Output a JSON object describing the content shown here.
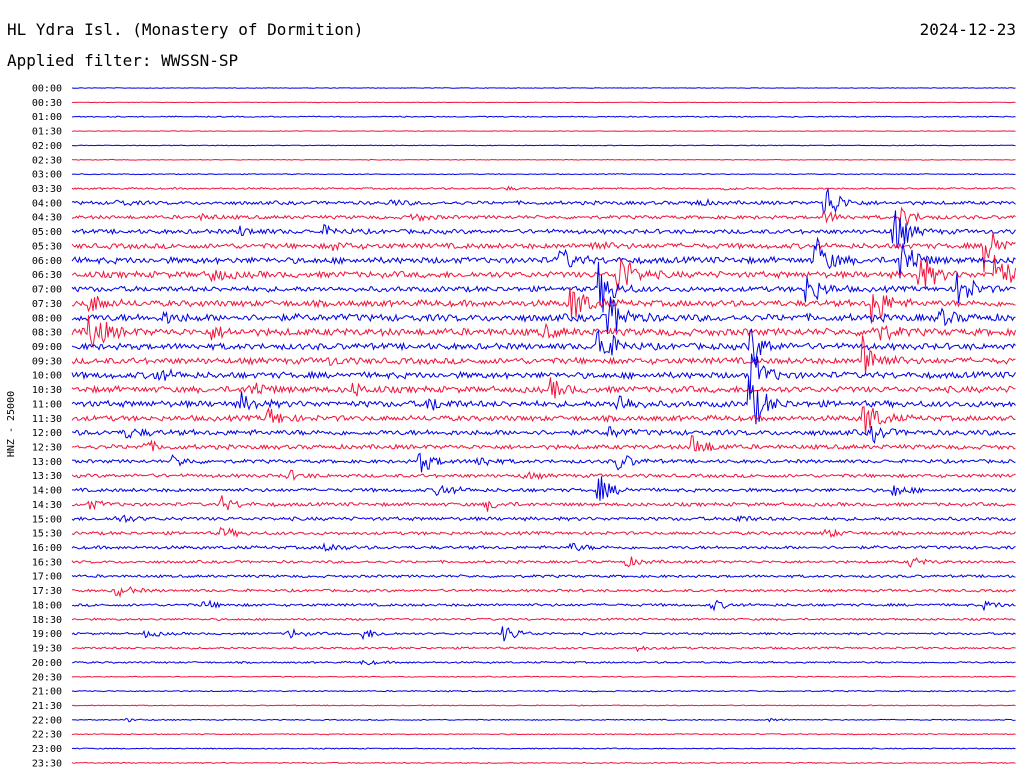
{
  "header": {
    "station": "HL Ydra Isl. (Monastery of Dormition)",
    "date": "2024-12-23",
    "filter": "Applied filter: WWSSN-SP"
  },
  "chart_data": {
    "type": "line",
    "title": "HL Ydra Isl. (Monastery of Dormition)",
    "ylabel": "HNZ - 25000",
    "colors": [
      "#0000e6",
      "#f0143c"
    ],
    "rows": [
      "00:00",
      "00:30",
      "01:00",
      "01:30",
      "02:00",
      "02:30",
      "03:00",
      "03:30",
      "04:00",
      "04:30",
      "05:00",
      "05:30",
      "06:00",
      "06:30",
      "07:00",
      "07:30",
      "08:00",
      "08:30",
      "09:00",
      "09:30",
      "10:00",
      "10:30",
      "11:00",
      "11:30",
      "12:00",
      "12:30",
      "13:00",
      "13:30",
      "14:00",
      "14:30",
      "15:00",
      "15:30",
      "16:00",
      "16:30",
      "17:00",
      "17:30",
      "18:00",
      "18:30",
      "19:00",
      "19:30",
      "20:00",
      "20:30",
      "21:00",
      "21:30",
      "22:00",
      "22:30",
      "23:00",
      "23:30"
    ],
    "noise": [
      0.3,
      0.3,
      0.6,
      0.3,
      0.4,
      0.4,
      0.5,
      1,
      2,
      2,
      2.5,
      3,
      3.5,
      3.5,
      3,
      3.5,
      4,
      4,
      3.5,
      3.5,
      3.5,
      3.5,
      3.5,
      3,
      3,
      2.5,
      2,
      2,
      2,
      2,
      2,
      1.8,
      1.8,
      1.5,
      1.5,
      1.5,
      1.5,
      1.2,
      1.2,
      1.2,
      1,
      0.5,
      0.7,
      0.5,
      0.6,
      0.6,
      0.6,
      0.6
    ],
    "events": [
      {
        "row": 7,
        "t": 0.46,
        "a": 2
      },
      {
        "row": 7,
        "t": 0.69,
        "a": 2
      },
      {
        "row": 8,
        "t": 0.05,
        "a": 3
      },
      {
        "row": 8,
        "t": 0.34,
        "a": 3
      },
      {
        "row": 8,
        "t": 0.66,
        "a": 4
      },
      {
        "row": 8,
        "t": 0.8,
        "a": 22
      },
      {
        "row": 9,
        "t": 0.14,
        "a": 3
      },
      {
        "row": 9,
        "t": 0.36,
        "a": 5
      },
      {
        "row": 9,
        "t": 0.8,
        "a": 6
      },
      {
        "row": 9,
        "t": 0.88,
        "a": 12
      },
      {
        "row": 10,
        "t": 0.18,
        "a": 6
      },
      {
        "row": 10,
        "t": 0.27,
        "a": 5
      },
      {
        "row": 10,
        "t": 0.87,
        "a": 32
      },
      {
        "row": 11,
        "t": 0.28,
        "a": 4
      },
      {
        "row": 11,
        "t": 0.55,
        "a": 6
      },
      {
        "row": 11,
        "t": 0.97,
        "a": 30
      },
      {
        "row": 12,
        "t": 0.52,
        "a": 12
      },
      {
        "row": 12,
        "t": 0.79,
        "a": 24
      },
      {
        "row": 12,
        "t": 0.88,
        "a": 26
      },
      {
        "row": 13,
        "t": 0.15,
        "a": 8
      },
      {
        "row": 13,
        "t": 0.58,
        "a": 30
      },
      {
        "row": 13,
        "t": 0.9,
        "a": 22
      },
      {
        "row": 13,
        "t": 0.98,
        "a": 30
      },
      {
        "row": 14,
        "t": 0.56,
        "a": 28
      },
      {
        "row": 14,
        "t": 0.78,
        "a": 20
      },
      {
        "row": 14,
        "t": 0.94,
        "a": 22
      },
      {
        "row": 15,
        "t": 0.02,
        "a": 12
      },
      {
        "row": 15,
        "t": 0.53,
        "a": 28
      },
      {
        "row": 15,
        "t": 0.85,
        "a": 26
      },
      {
        "row": 16,
        "t": 0.1,
        "a": 6
      },
      {
        "row": 16,
        "t": 0.57,
        "a": 30
      },
      {
        "row": 16,
        "t": 0.92,
        "a": 10
      },
      {
        "row": 17,
        "t": 0.02,
        "a": 28
      },
      {
        "row": 17,
        "t": 0.15,
        "a": 6
      },
      {
        "row": 17,
        "t": 0.5,
        "a": 6
      },
      {
        "row": 17,
        "t": 0.85,
        "a": 14
      },
      {
        "row": 18,
        "t": 0.56,
        "a": 26
      },
      {
        "row": 18,
        "t": 0.72,
        "a": 22
      },
      {
        "row": 19,
        "t": 0.27,
        "a": 4
      },
      {
        "row": 19,
        "t": 0.84,
        "a": 30
      },
      {
        "row": 20,
        "t": 0.09,
        "a": 8
      },
      {
        "row": 20,
        "t": 0.72,
        "a": 30
      },
      {
        "row": 21,
        "t": 0.19,
        "a": 10
      },
      {
        "row": 21,
        "t": 0.3,
        "a": 6
      },
      {
        "row": 21,
        "t": 0.51,
        "a": 10
      },
      {
        "row": 22,
        "t": 0.18,
        "a": 10
      },
      {
        "row": 22,
        "t": 0.38,
        "a": 8
      },
      {
        "row": 22,
        "t": 0.58,
        "a": 12
      },
      {
        "row": 22,
        "t": 0.72,
        "a": 30
      },
      {
        "row": 23,
        "t": 0.21,
        "a": 12
      },
      {
        "row": 23,
        "t": 0.84,
        "a": 26
      },
      {
        "row": 24,
        "t": 0.06,
        "a": 6
      },
      {
        "row": 24,
        "t": 0.57,
        "a": 6
      },
      {
        "row": 24,
        "t": 0.85,
        "a": 8
      },
      {
        "row": 25,
        "t": 0.08,
        "a": 5
      },
      {
        "row": 25,
        "t": 0.66,
        "a": 14
      },
      {
        "row": 26,
        "t": 0.11,
        "a": 6
      },
      {
        "row": 26,
        "t": 0.37,
        "a": 14
      },
      {
        "row": 26,
        "t": 0.43,
        "a": 8
      },
      {
        "row": 26,
        "t": 0.58,
        "a": 10
      },
      {
        "row": 27,
        "t": 0.23,
        "a": 5
      },
      {
        "row": 27,
        "t": 0.48,
        "a": 4
      },
      {
        "row": 28,
        "t": 0.39,
        "a": 8
      },
      {
        "row": 28,
        "t": 0.56,
        "a": 14
      },
      {
        "row": 28,
        "t": 0.87,
        "a": 8
      },
      {
        "row": 29,
        "t": 0.02,
        "a": 5
      },
      {
        "row": 29,
        "t": 0.16,
        "a": 8
      },
      {
        "row": 29,
        "t": 0.44,
        "a": 6
      },
      {
        "row": 30,
        "t": 0.05,
        "a": 5
      },
      {
        "row": 30,
        "t": 0.7,
        "a": 5
      },
      {
        "row": 31,
        "t": 0.16,
        "a": 6
      },
      {
        "row": 31,
        "t": 0.8,
        "a": 5
      },
      {
        "row": 32,
        "t": 0.27,
        "a": 5
      },
      {
        "row": 32,
        "t": 0.53,
        "a": 5
      },
      {
        "row": 33,
        "t": 0.59,
        "a": 5
      },
      {
        "row": 33,
        "t": 0.89,
        "a": 5
      },
      {
        "row": 35,
        "t": 0.05,
        "a": 7
      },
      {
        "row": 36,
        "t": 0.14,
        "a": 5
      },
      {
        "row": 36,
        "t": 0.68,
        "a": 5
      },
      {
        "row": 36,
        "t": 0.97,
        "a": 4
      },
      {
        "row": 38,
        "t": 0.08,
        "a": 4
      },
      {
        "row": 38,
        "t": 0.23,
        "a": 6
      },
      {
        "row": 38,
        "t": 0.31,
        "a": 6
      },
      {
        "row": 38,
        "t": 0.46,
        "a": 10
      },
      {
        "row": 39,
        "t": 0.6,
        "a": 3
      },
      {
        "row": 40,
        "t": 0.31,
        "a": 3
      },
      {
        "row": 44,
        "t": 0.06,
        "a": 2
      },
      {
        "row": 44,
        "t": 0.74,
        "a": 2
      }
    ]
  }
}
